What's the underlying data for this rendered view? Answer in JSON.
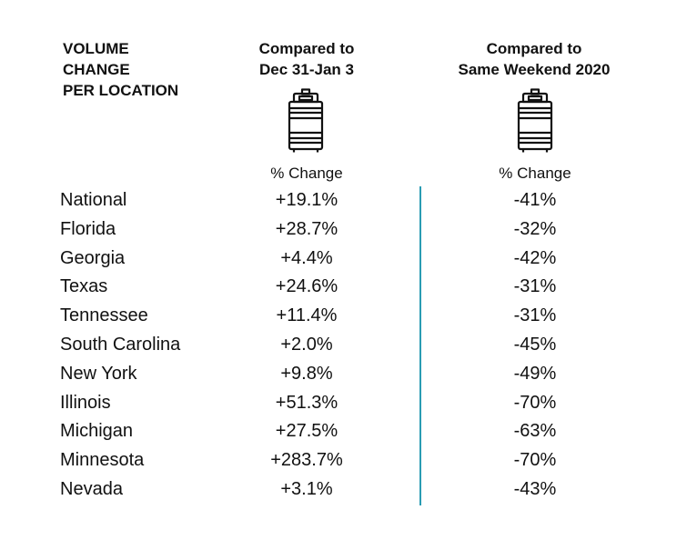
{
  "header": {
    "label": "VOLUME\nCHANGE\nPER LOCATION",
    "col1": "Compared to\nDec 31-Jan 3",
    "col2": "Compared to\nSame Weekend 2020"
  },
  "icons": {
    "col1": "keg-icon",
    "col2": "keg-icon"
  },
  "subheader": {
    "col1": "% Change",
    "col2": "% Change"
  },
  "colors": {
    "divider": "#2a9cb3"
  },
  "rows": [
    {
      "location": "National",
      "vs_new_year": "+19.1%",
      "vs_2020": "-41%"
    },
    {
      "location": "Florida",
      "vs_new_year": "+28.7%",
      "vs_2020": "-32%"
    },
    {
      "location": "Georgia",
      "vs_new_year": "+4.4%",
      "vs_2020": "-42%"
    },
    {
      "location": "Texas",
      "vs_new_year": "+24.6%",
      "vs_2020": "-31%"
    },
    {
      "location": "Tennessee",
      "vs_new_year": "+11.4%",
      "vs_2020": "-31%"
    },
    {
      "location": "South Carolina",
      "vs_new_year": "+2.0%",
      "vs_2020": "-45%"
    },
    {
      "location": "New York",
      "vs_new_year": "+9.8%",
      "vs_2020": "-49%"
    },
    {
      "location": "Illinois",
      "vs_new_year": "+51.3%",
      "vs_2020": "-70%"
    },
    {
      "location": "Michigan",
      "vs_new_year": "+27.5%",
      "vs_2020": "-63%"
    },
    {
      "location": "Minnesota",
      "vs_new_year": "+283.7%",
      "vs_2020": "-70%"
    },
    {
      "location": "Nevada",
      "vs_new_year": "+3.1%",
      "vs_2020": "-43%"
    }
  ]
}
